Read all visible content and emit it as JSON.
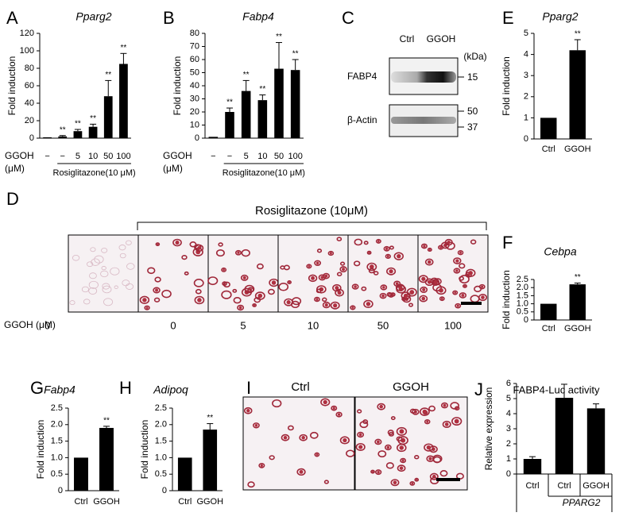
{
  "chart_data": [
    {
      "type": "bar",
      "panel": "A",
      "title": "Pparg2",
      "ylabel": "Fold induction",
      "categories": [
        "−",
        "−",
        "5",
        "10",
        "50",
        "100"
      ],
      "values": [
        1,
        2,
        8,
        13,
        48,
        85
      ],
      "errors": [
        0,
        1,
        2,
        3,
        18,
        12
      ],
      "annotations": [
        null,
        "**",
        "**",
        "**",
        "**",
        "**"
      ],
      "color": "#000000",
      "ylim": [
        0,
        120
      ],
      "yticks": [
        0,
        20,
        40,
        60,
        80,
        100,
        120
      ],
      "xlabel_lines": [
        "GGOH",
        "(μM)"
      ],
      "group_label": "Rosiglitazone(10 μM)"
    },
    {
      "type": "bar",
      "panel": "B",
      "title": "Fabp4",
      "ylabel": "Fold induction",
      "categories": [
        "−",
        "−",
        "5",
        "10",
        "50",
        "100"
      ],
      "values": [
        1,
        20,
        36,
        29,
        53,
        52
      ],
      "errors": [
        0,
        3,
        8,
        4,
        20,
        8
      ],
      "annotations": [
        null,
        "**",
        "**",
        "**",
        "**",
        "**"
      ],
      "color": "#000000",
      "ylim": [
        0,
        80
      ],
      "yticks": [
        0,
        10,
        20,
        30,
        40,
        50,
        60,
        70,
        80
      ],
      "xlabel_lines": [
        "GGOH",
        "(μM)"
      ],
      "group_label": "Rosiglitazone(10 μM)"
    },
    {
      "type": "bar",
      "panel": "E",
      "title": "Pparg2",
      "ylabel": "Fold induction",
      "categories": [
        "Ctrl",
        "GGOH"
      ],
      "values": [
        1,
        4.2
      ],
      "errors": [
        0,
        0.5
      ],
      "annotations": [
        null,
        "**"
      ],
      "color": "#000000",
      "ylim": [
        0,
        5
      ],
      "yticks": [
        0,
        1,
        2,
        3,
        4,
        5
      ]
    },
    {
      "type": "bar",
      "panel": "F",
      "title": "Cebpa",
      "ylabel": "Fold induction",
      "categories": [
        "Ctrl",
        "GGOH"
      ],
      "values": [
        1,
        2.2
      ],
      "errors": [
        0,
        0.08
      ],
      "annotations": [
        null,
        "**"
      ],
      "color": "#000000",
      "ylim": [
        0,
        2.5
      ],
      "yticks": [
        0,
        0.5,
        {
          "value": 1,
          "label": "1.0"
        },
        1.5,
        {
          "value": 2,
          "label": "2.0"
        },
        2.5
      ]
    },
    {
      "type": "bar",
      "panel": "G",
      "title": "Fabp4",
      "ylabel": "Fold induction",
      "categories": [
        "Ctrl",
        "GGOH"
      ],
      "values": [
        1,
        1.9
      ],
      "errors": [
        0,
        0.05
      ],
      "annotations": [
        null,
        "**"
      ],
      "color": "#000000",
      "ylim": [
        0,
        2.5
      ],
      "yticks": [
        0,
        0.5,
        {
          "value": 1,
          "label": "1.0"
        },
        1.5,
        {
          "value": 2,
          "label": "2.0"
        },
        2.5
      ]
    },
    {
      "type": "bar",
      "panel": "H",
      "title": "Adipoq",
      "ylabel": "Fold induction",
      "categories": [
        "Ctrl",
        "GGOH"
      ],
      "values": [
        1,
        1.85
      ],
      "errors": [
        0,
        0.18
      ],
      "annotations": [
        null,
        "**"
      ],
      "color": "#000000",
      "ylim": [
        0,
        2.5
      ],
      "yticks": [
        0,
        0.5,
        {
          "value": 1,
          "label": "1.0"
        },
        1.5,
        {
          "value": 2,
          "label": "2.0"
        },
        2.5
      ]
    },
    {
      "type": "bar",
      "panel": "J",
      "title": "FABP4-Luc activity",
      "ylabel": "Relative expression",
      "categories": [
        "Ctrl",
        "Ctrl",
        "GGOH"
      ],
      "values": [
        1,
        5.05,
        4.35
      ],
      "errors": [
        0.15,
        0.9,
        0.3
      ],
      "color": "#000000",
      "ylim": [
        0,
        6
      ],
      "yticks": [
        0,
        1,
        2,
        3,
        4,
        5,
        6
      ],
      "group_label": "PPARG2"
    }
  ],
  "figure": {
    "C": {
      "panel": "C",
      "lanes": [
        "Ctrl",
        "GGOH"
      ],
      "unit": "(kDa)",
      "rows": [
        "FABP4",
        "β-Actin"
      ],
      "markers": [
        15,
        50,
        37
      ]
    },
    "D": {
      "panel": "D",
      "treatment": "Rosiglitazone (10μM)",
      "axis_label": "GGOH (μM)",
      "doses": [
        0,
        0,
        5,
        10,
        50,
        100
      ]
    },
    "I": {
      "panel": "I",
      "conditions": [
        "Ctrl",
        "GGOH"
      ]
    }
  }
}
